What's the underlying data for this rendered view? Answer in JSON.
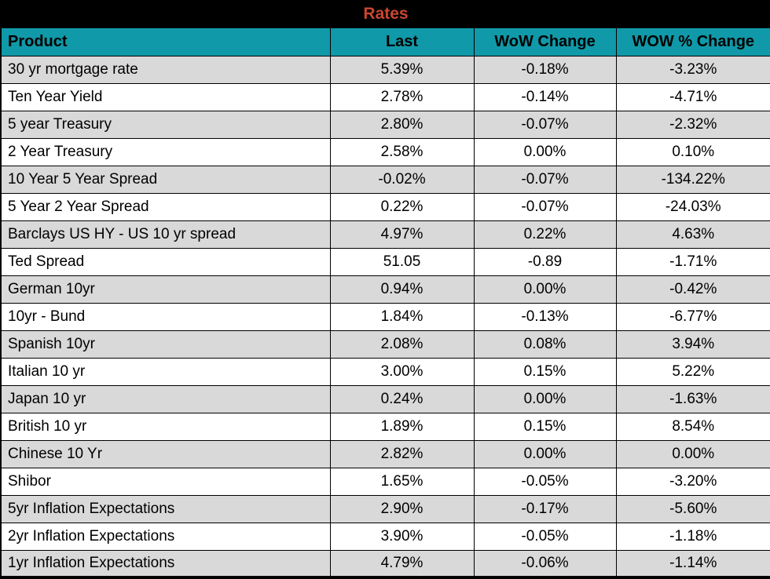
{
  "chart_data": {
    "type": "table",
    "title": "Rates",
    "columns": [
      "Product",
      "Last",
      "WoW Change",
      "WOW % Change"
    ],
    "rows": [
      [
        "30 yr mortgage rate",
        "5.39%",
        "-0.18%",
        "-3.23%"
      ],
      [
        "Ten Year Yield",
        "2.78%",
        "-0.14%",
        "-4.71%"
      ],
      [
        "5 year Treasury",
        "2.80%",
        "-0.07%",
        "-2.32%"
      ],
      [
        "2 Year Treasury",
        "2.58%",
        "0.00%",
        "0.10%"
      ],
      [
        "10 Year 5 Year Spread",
        "-0.02%",
        "-0.07%",
        "-134.22%"
      ],
      [
        "5 Year 2 Year Spread",
        "0.22%",
        "-0.07%",
        "-24.03%"
      ],
      [
        "Barclays US HY - US 10 yr spread",
        "4.97%",
        "0.22%",
        "4.63%"
      ],
      [
        "Ted Spread",
        "51.05",
        "-0.89",
        "-1.71%"
      ],
      [
        "German 10yr",
        "0.94%",
        "0.00%",
        "-0.42%"
      ],
      [
        "10yr - Bund",
        "1.84%",
        "-0.13%",
        "-6.77%"
      ],
      [
        "Spanish 10yr",
        "2.08%",
        "0.08%",
        "3.94%"
      ],
      [
        "Italian 10 yr",
        "3.00%",
        "0.15%",
        "5.22%"
      ],
      [
        "Japan 10 yr",
        "0.24%",
        "0.00%",
        "-1.63%"
      ],
      [
        "British 10 yr",
        "1.89%",
        "0.15%",
        "8.54%"
      ],
      [
        "Chinese 10 Yr",
        "2.82%",
        "0.00%",
        "0.00%"
      ],
      [
        "Shibor",
        "1.65%",
        "-0.05%",
        "-3.20%"
      ],
      [
        "5yr Inflation Expectations",
        "2.90%",
        "-0.17%",
        "-5.60%"
      ],
      [
        "2yr Inflation Expectations",
        "3.90%",
        "-0.05%",
        "-1.18%"
      ],
      [
        "1yr Inflation Expectations",
        "4.79%",
        "-0.06%",
        "-1.14%"
      ]
    ],
    "colors": {
      "title_bg": "#000000",
      "title_text": "#c8472e",
      "header_bg": "#1099a8",
      "header_text": "#000000",
      "row_bg": "#ffffff",
      "row_alt_bg": "#d9d9d9",
      "border": "#000000"
    },
    "layout": {
      "first_data_row_shaded": true,
      "product_column_align": "left",
      "numeric_columns_align": "center"
    }
  }
}
